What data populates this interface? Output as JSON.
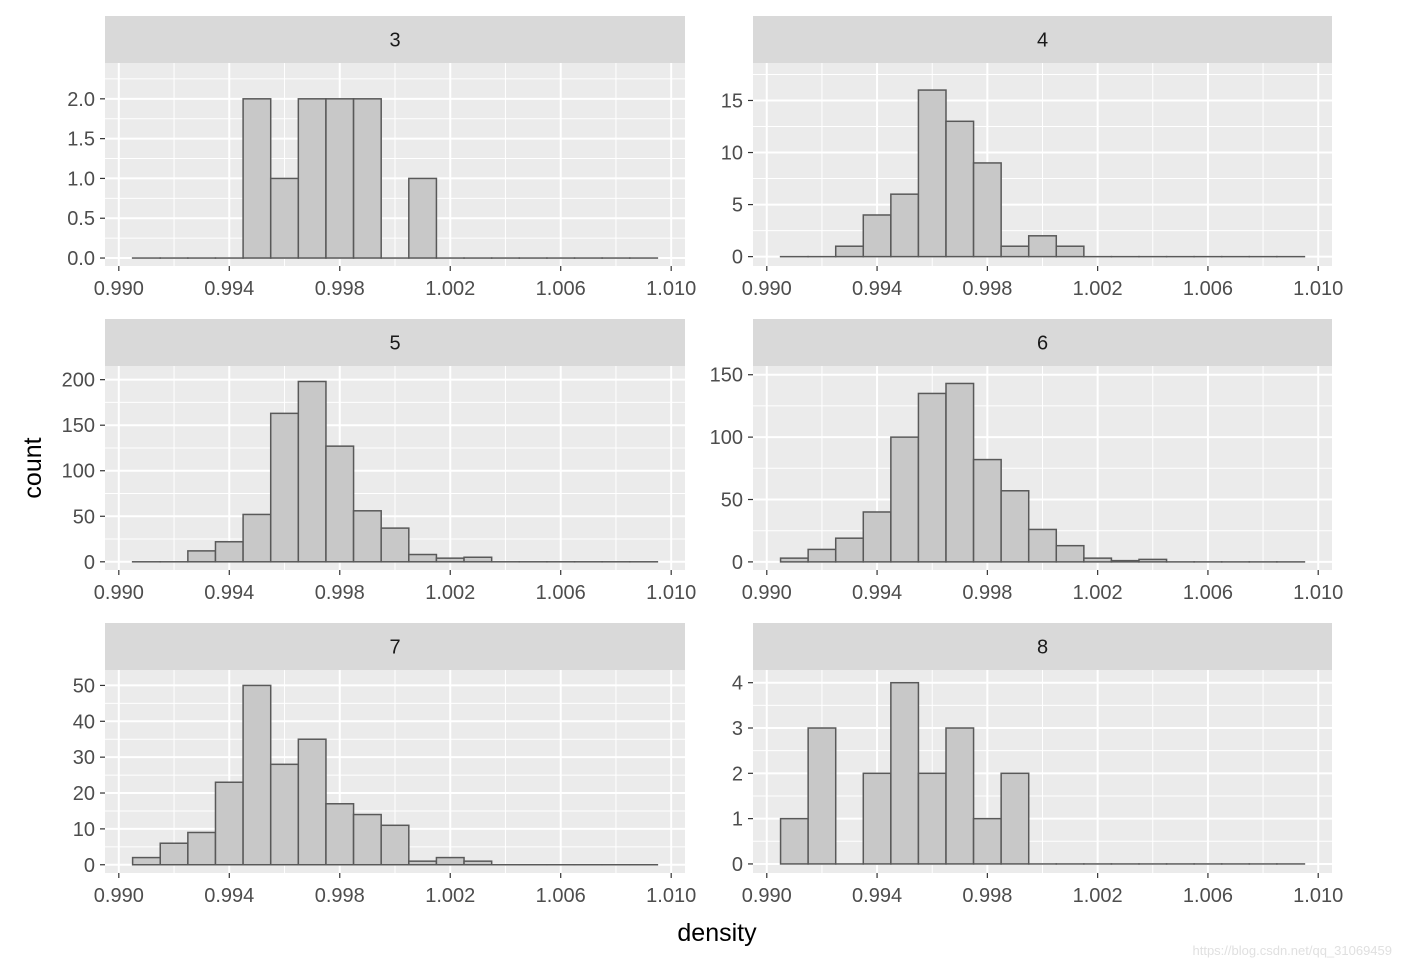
{
  "chart_data": {
    "type": "bar",
    "xlabel": "density",
    "ylabel": "count",
    "xlim": [
      0.9895,
      1.0105
    ],
    "x_ticks": [
      "0.990",
      "0.994",
      "0.998",
      "1.002",
      "1.006",
      "1.010"
    ],
    "x_tick_values": [
      0.99,
      0.994,
      0.998,
      1.002,
      1.006,
      1.01
    ],
    "bin_width": 0.001,
    "bin_starts": [
      0.9905,
      0.9915,
      0.9925,
      0.9935,
      0.9945,
      0.9955,
      0.9965,
      0.9975,
      0.9985,
      0.9995,
      1.0005,
      1.0015,
      1.0025,
      1.0035,
      1.0045,
      1.0055,
      1.0065,
      1.0075,
      1.0085
    ],
    "colors": {
      "panel": "#ebebeb",
      "strip": "#d9d9d9",
      "grid": "#ffffff",
      "bar_fill": "#c8c8c8",
      "bar_stroke": "#595959"
    },
    "grid": true,
    "facets": [
      {
        "label": "3",
        "ylim": [
          -0.1,
          2.45
        ],
        "y_ticks": [
          0,
          0.5,
          1,
          1.5,
          2
        ],
        "y_tick_labels": [
          "0.0",
          "0.5",
          "1.0",
          "1.5",
          "2.0"
        ],
        "counts": [
          0,
          0,
          0,
          0,
          2,
          1,
          2,
          2,
          2,
          0,
          1,
          0,
          0,
          0,
          0,
          0,
          0,
          0,
          0
        ]
      },
      {
        "label": "4",
        "ylim": [
          -0.9,
          18.6
        ],
        "y_ticks": [
          0,
          5,
          10,
          15
        ],
        "y_tick_labels": [
          "0",
          "5",
          "10",
          "15"
        ],
        "counts": [
          0,
          0,
          1,
          4,
          6,
          16,
          13,
          9,
          1,
          2,
          1,
          0,
          0,
          0,
          0,
          0,
          0,
          0,
          0
        ]
      },
      {
        "label": "5",
        "ylim": [
          -9,
          215
        ],
        "y_ticks": [
          0,
          50,
          100,
          150,
          200
        ],
        "y_tick_labels": [
          "0",
          "50",
          "100",
          "150",
          "200"
        ],
        "counts": [
          0,
          0,
          12,
          22,
          52,
          163,
          198,
          127,
          56,
          37,
          8,
          4,
          5,
          0,
          0,
          0,
          0,
          0,
          0
        ]
      },
      {
        "label": "6",
        "ylim": [
          -6.5,
          157
        ],
        "y_ticks": [
          0,
          50,
          100,
          150
        ],
        "y_tick_labels": [
          "0",
          "50",
          "100",
          "150"
        ],
        "counts": [
          3,
          10,
          19,
          40,
          100,
          135,
          143,
          82,
          57,
          26,
          13,
          3,
          1,
          2,
          0,
          0,
          0,
          0,
          0
        ]
      },
      {
        "label": "7",
        "ylim": [
          -2.3,
          54.3
        ],
        "y_ticks": [
          0,
          10,
          20,
          30,
          40,
          50
        ],
        "y_tick_labels": [
          "0",
          "10",
          "20",
          "30",
          "40",
          "50"
        ],
        "counts": [
          2,
          6,
          9,
          23,
          50,
          28,
          35,
          17,
          14,
          11,
          1,
          2,
          1,
          0,
          0,
          0,
          0,
          0,
          0
        ]
      },
      {
        "label": "8",
        "ylim": [
          -0.2,
          4.28
        ],
        "y_ticks": [
          0,
          1,
          2,
          3,
          4
        ],
        "y_tick_labels": [
          "0",
          "1",
          "2",
          "3",
          "4"
        ],
        "counts": [
          1,
          3,
          0,
          2,
          4,
          2,
          3,
          1,
          2,
          0,
          0,
          0,
          0,
          0,
          0,
          0,
          0,
          0,
          0
        ]
      }
    ]
  },
  "watermark": "https://blog.csdn.net/qq_31069459"
}
